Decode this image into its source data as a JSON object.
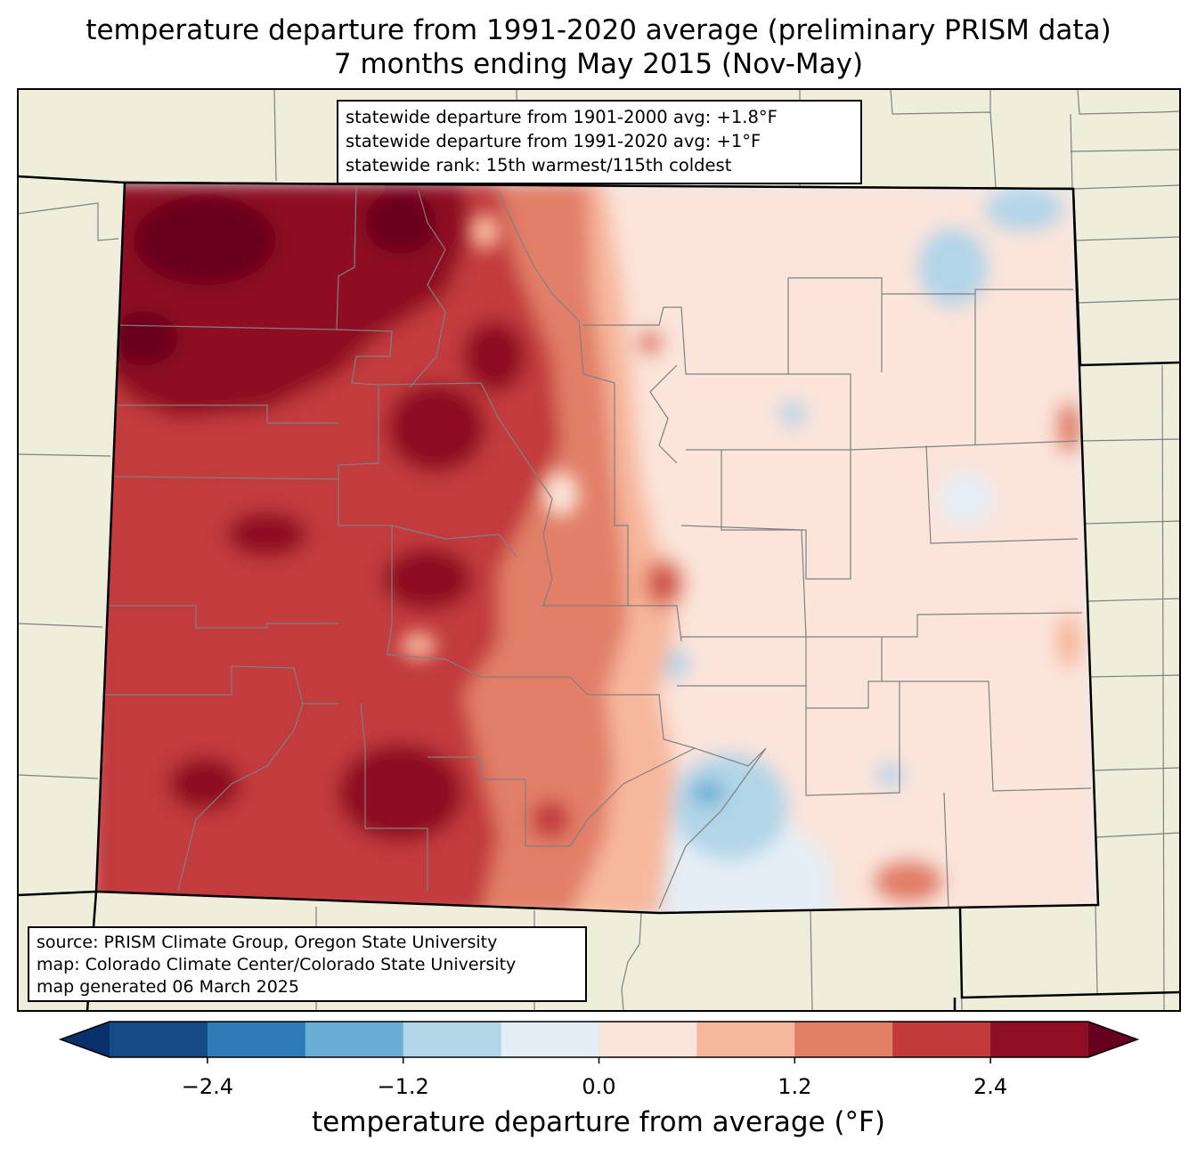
{
  "title_line1": "temperature departure from 1991-2020 average (preliminary PRISM data)",
  "title_line2": "7 months ending May 2015 (Nov-May)",
  "stats": {
    "line1": "statewide departure from 1901-2000 avg: +1.8°F",
    "line2": "statewide departure from 1991-2020 avg: +1°F",
    "line3": "statewide rank: 15th warmest/115th coldest"
  },
  "source": {
    "line1": "source: PRISM Climate Group, Oregon State University",
    "line2": "map: Colorado Climate Center/Colorado State University",
    "line3": "map generated 06 March 2025"
  },
  "colorbar": {
    "label": "temperature departure from average (°F)",
    "bins": [
      -3.0,
      -2.4,
      -1.8,
      -1.2,
      -0.6,
      0.0,
      0.6,
      1.2,
      1.8,
      2.4,
      3.0
    ],
    "colors": [
      "#08306b",
      "#154a85",
      "#2f7bb8",
      "#6aaed5",
      "#b2d5e8",
      "#e5eef6",
      "#fbe4da",
      "#f7b79c",
      "#e27f67",
      "#c23a3c",
      "#8e0f24",
      "#67001f"
    ],
    "tick_values": [
      -2.4,
      -1.2,
      0.0,
      1.2,
      2.4
    ],
    "tick_labels": [
      "−2.4",
      "−1.2",
      "0.0",
      "1.2",
      "2.4"
    ]
  },
  "map_colors": {
    "land": "#efeedb",
    "county_line": "#808080",
    "state_line": "#000000"
  }
}
